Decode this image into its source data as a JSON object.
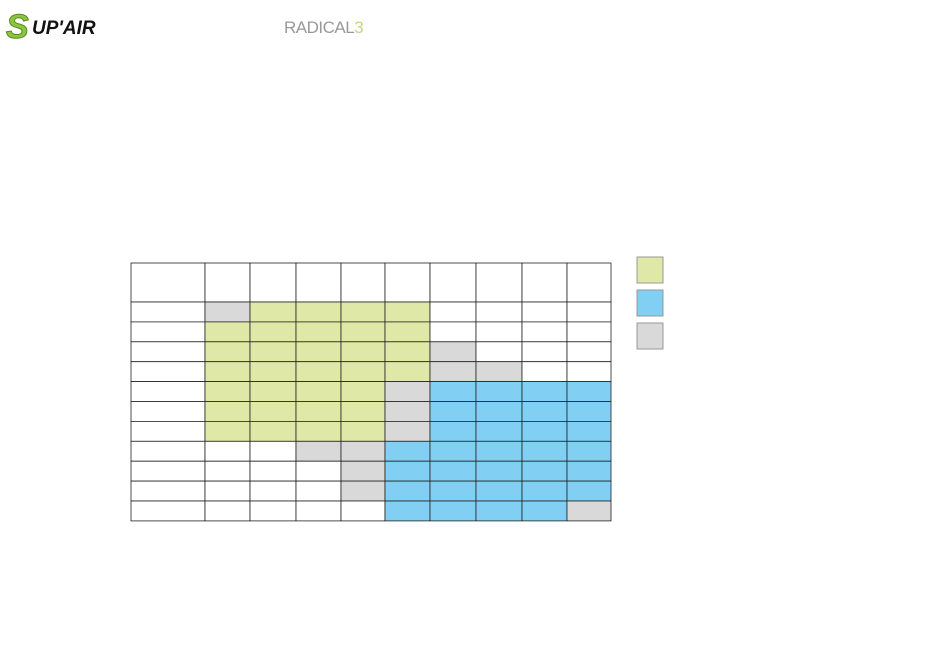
{
  "header": {
    "logo_initial": "S",
    "logo_rest": "UP'AIR",
    "product": "RADICAL",
    "product_number": "3"
  },
  "table": {
    "header_color": "#ffffff",
    "rows": [
      [
        "#ffffff",
        "#d9d9d9",
        "#dfe8a6",
        "#dfe8a6",
        "#dfe8a6",
        "#dfe8a6",
        "#ffffff",
        "#ffffff",
        "#ffffff",
        "#ffffff"
      ],
      [
        "#ffffff",
        "#dfe8a6",
        "#dfe8a6",
        "#dfe8a6",
        "#dfe8a6",
        "#dfe8a6",
        "#ffffff",
        "#ffffff",
        "#ffffff",
        "#ffffff"
      ],
      [
        "#ffffff",
        "#dfe8a6",
        "#dfe8a6",
        "#dfe8a6",
        "#dfe8a6",
        "#dfe8a6",
        "#d9d9d9",
        "#ffffff",
        "#ffffff",
        "#ffffff"
      ],
      [
        "#ffffff",
        "#dfe8a6",
        "#dfe8a6",
        "#dfe8a6",
        "#dfe8a6",
        "#dfe8a6",
        "#d9d9d9",
        "#d9d9d9",
        "#ffffff",
        "#ffffff"
      ],
      [
        "#ffffff",
        "#dfe8a6",
        "#dfe8a6",
        "#dfe8a6",
        "#dfe8a6",
        "#d9d9d9",
        "#81d0f4",
        "#81d0f4",
        "#81d0f4",
        "#81d0f4"
      ],
      [
        "#ffffff",
        "#dfe8a6",
        "#dfe8a6",
        "#dfe8a6",
        "#dfe8a6",
        "#d9d9d9",
        "#81d0f4",
        "#81d0f4",
        "#81d0f4",
        "#81d0f4"
      ],
      [
        "#ffffff",
        "#dfe8a6",
        "#dfe8a6",
        "#dfe8a6",
        "#dfe8a6",
        "#d9d9d9",
        "#81d0f4",
        "#81d0f4",
        "#81d0f4",
        "#81d0f4"
      ],
      [
        "#ffffff",
        "#ffffff",
        "#ffffff",
        "#d9d9d9",
        "#d9d9d9",
        "#81d0f4",
        "#81d0f4",
        "#81d0f4",
        "#81d0f4",
        "#81d0f4"
      ],
      [
        "#ffffff",
        "#ffffff",
        "#ffffff",
        "#ffffff",
        "#d9d9d9",
        "#81d0f4",
        "#81d0f4",
        "#81d0f4",
        "#81d0f4",
        "#81d0f4"
      ],
      [
        "#ffffff",
        "#ffffff",
        "#ffffff",
        "#ffffff",
        "#d9d9d9",
        "#81d0f4",
        "#81d0f4",
        "#81d0f4",
        "#81d0f4",
        "#81d0f4"
      ],
      [
        "#ffffff",
        "#ffffff",
        "#ffffff",
        "#ffffff",
        "#ffffff",
        "#81d0f4",
        "#81d0f4",
        "#81d0f4",
        "#81d0f4",
        "#d9d9d9"
      ]
    ]
  },
  "legend": {
    "colors": [
      "#dfe8a6",
      "#81d0f4",
      "#d9d9d9"
    ]
  }
}
